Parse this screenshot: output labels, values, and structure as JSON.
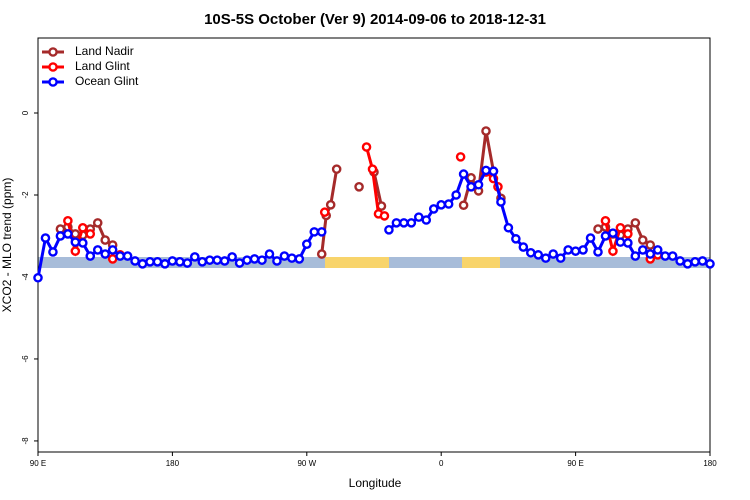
{
  "chart_data": {
    "type": "line",
    "title": "10S-5S October (Ver 9)   2014-09-06 to 2018-12-31",
    "x_label": "Longitude",
    "y_label": "XCO2 - MLO trend (ppm)",
    "xlim": [
      90,
      540
    ],
    "ylim": [
      -8.27,
      1.83
    ],
    "xticks": [
      {
        "value": 90,
        "label": "90 E"
      },
      180,
      {
        "value": 270,
        "label": "90 W"
      },
      {
        "value": 360,
        "label": "0"
      },
      {
        "value": 450,
        "label": "90 E"
      },
      {
        "value": 540,
        "label": "180"
      }
    ],
    "yticks": [
      0,
      -2,
      -4,
      -6,
      -8
    ],
    "legend": "top-left",
    "series": [
      {
        "name": "Land Nadir",
        "color": "#a52a2a",
        "x": [
          105,
          110,
          115,
          120,
          125,
          130,
          135,
          140,
          200,
          280,
          283,
          286,
          290,
          297,
          305,
          310,
          315,
          320,
          350,
          375,
          380,
          385,
          390,
          395,
          400,
          450,
          465,
          470,
          475,
          480,
          485,
          490,
          495,
          500
        ],
        "values": [
          -2.83,
          -2.78,
          -2.95,
          -2.98,
          -2.83,
          -2.68,
          -3.1,
          -3.22,
          null,
          -3.44,
          -2.5,
          -2.24,
          -1.37,
          null,
          -1.8,
          null,
          -1.44,
          -2.27,
          null,
          -2.25,
          -1.58,
          -1.9,
          -0.44,
          -1.42,
          -2.08,
          null,
          -2.83,
          -2.78,
          -2.95,
          -2.98,
          -2.83,
          -2.68,
          -3.1,
          -3.22
        ]
      },
      {
        "name": "Land Glint",
        "color": "#ff0000",
        "x": [
          110,
          115,
          120,
          125,
          130,
          140,
          145,
          200,
          282,
          295,
          310,
          314,
          318,
          322,
          350,
          373,
          380,
          390,
          395,
          398,
          450,
          470,
          475,
          480,
          485,
          490,
          500,
          505
        ],
        "values": [
          -2.63,
          -3.37,
          -2.8,
          -2.95,
          null,
          -3.56,
          -3.46,
          null,
          -2.42,
          null,
          -0.83,
          -1.37,
          -2.46,
          -2.51,
          null,
          -1.07,
          null,
          -1.44,
          -1.6,
          -1.8,
          null,
          -2.63,
          -3.37,
          -2.8,
          -2.95,
          null,
          -3.56,
          -3.46
        ]
      },
      {
        "name": "Ocean Glint",
        "color": "#0000ff",
        "x": [
          90,
          95,
          100,
          105,
          110,
          115,
          120,
          125,
          130,
          135,
          140,
          145,
          150,
          155,
          160,
          165,
          170,
          175,
          180,
          185,
          190,
          195,
          200,
          205,
          210,
          215,
          220,
          225,
          230,
          235,
          240,
          245,
          250,
          255,
          260,
          265,
          270,
          275,
          280,
          300,
          325,
          330,
          335,
          340,
          345,
          350,
          355,
          360,
          365,
          370,
          375,
          380,
          385,
          390,
          395,
          400,
          405,
          410,
          415,
          420,
          425,
          430,
          435,
          440,
          445,
          450,
          455,
          460,
          465,
          470,
          475,
          480,
          485,
          490,
          495,
          500,
          505,
          510,
          515,
          520,
          525,
          530,
          535,
          540
        ],
        "values": [
          -4.02,
          -3.05,
          -3.39,
          -3.0,
          -2.95,
          -3.15,
          -3.17,
          -3.49,
          -3.34,
          -3.44,
          -3.34,
          -3.49,
          -3.49,
          -3.61,
          -3.68,
          -3.63,
          -3.63,
          -3.68,
          -3.61,
          -3.63,
          -3.66,
          -3.51,
          -3.63,
          -3.59,
          -3.59,
          -3.61,
          -3.51,
          -3.66,
          -3.59,
          -3.56,
          -3.59,
          -3.44,
          -3.61,
          -3.49,
          -3.54,
          -3.56,
          -3.2,
          -2.9,
          -2.9,
          null,
          -2.85,
          -2.68,
          -2.68,
          -2.68,
          -2.54,
          -2.61,
          -2.34,
          -2.24,
          -2.22,
          -2.0,
          -1.49,
          -1.8,
          -1.75,
          -1.4,
          -1.42,
          -2.17,
          -2.8,
          -3.07,
          -3.27,
          -3.41,
          -3.46,
          -3.54,
          -3.44,
          -3.54,
          -3.34,
          -3.37,
          -3.34,
          -3.05,
          -3.39,
          -3.0,
          -2.93,
          -3.15,
          -3.17,
          -3.49,
          -3.34,
          -3.44,
          -3.34,
          -3.49,
          -3.49,
          -3.61,
          -3.68,
          -3.63,
          -3.61,
          -3.68
        ]
      }
    ]
  }
}
